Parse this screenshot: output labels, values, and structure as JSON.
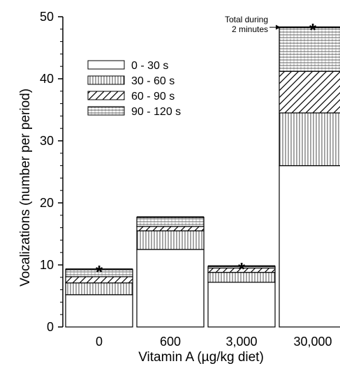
{
  "chart_data": {
    "type": "bar",
    "stacked": true,
    "categories": [
      "0",
      "600",
      "3,000",
      "30,000"
    ],
    "series": [
      {
        "name": "0 - 30 s",
        "values": [
          5.2,
          12.5,
          7.2,
          26.0
        ]
      },
      {
        "name": "30 - 60 s",
        "values": [
          1.9,
          3.0,
          1.6,
          8.5
        ]
      },
      {
        "name": "60 - 90 s",
        "values": [
          1.0,
          0.7,
          0.7,
          6.7
        ]
      },
      {
        "name": "90 - 120 s",
        "values": [
          1.2,
          1.5,
          0.3,
          7.1
        ]
      }
    ],
    "totals": [
      9.3,
      17.7,
      9.8,
      48.3
    ],
    "significant": [
      true,
      false,
      true,
      true
    ],
    "significance_marker": "*",
    "xlabel": "Vitamin A (µg/kg diet)",
    "ylabel": "Vocalizations (number per period)",
    "ylim": [
      0,
      50
    ],
    "yticks": [
      "0",
      "10",
      "20",
      "30",
      "40",
      "50"
    ],
    "grid": false,
    "legend_position": "top-left",
    "annotation": {
      "lines": [
        "Total during",
        "2 minutes"
      ],
      "target_category": "30,000"
    }
  }
}
